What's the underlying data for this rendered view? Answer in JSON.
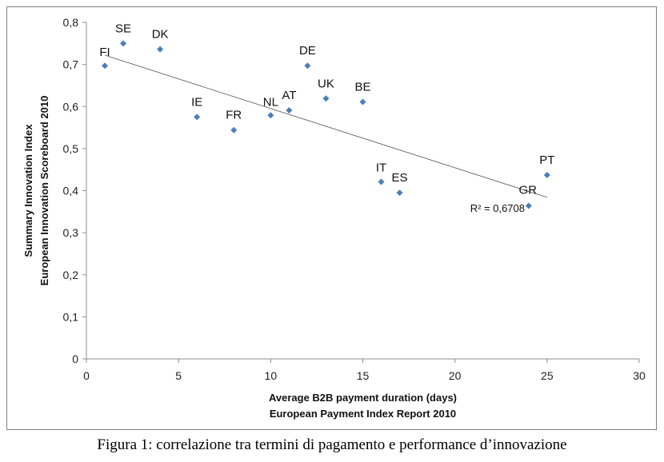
{
  "caption": "Figura 1: correlazione tra termini di pagamento e performance d’innovazione",
  "chart_data": {
    "type": "scatter",
    "xlabel_lines": [
      "Average B2B payment duration (days)",
      "European Payment Index Report 2010"
    ],
    "ylabel_lines": [
      "Summary Innovation Index",
      "European Innovation Scoreboard 2010"
    ],
    "xlim": [
      0,
      30
    ],
    "ylim": [
      0,
      0.8
    ],
    "x_ticks": [
      0,
      5,
      10,
      15,
      20,
      25,
      30
    ],
    "x_tick_labels": [
      "0",
      "5",
      "10",
      "15",
      "20",
      "25",
      "30"
    ],
    "y_ticks": [
      0,
      0.1,
      0.2,
      0.3,
      0.4,
      0.5,
      0.6,
      0.7,
      0.8
    ],
    "y_tick_labels": [
      "0",
      "0,1",
      "0,2",
      "0,3",
      "0,4",
      "0,5",
      "0,6",
      "0,7",
      "0,8"
    ],
    "grid": "none",
    "marker_color": "#4a7ebb",
    "trendline_color": "#555555",
    "points": [
      {
        "label": "FI",
        "x": 1,
        "y": 0.697
      },
      {
        "label": "SE",
        "x": 2,
        "y": 0.75
      },
      {
        "label": "DK",
        "x": 4,
        "y": 0.736
      },
      {
        "label": "IE",
        "x": 6,
        "y": 0.575
      },
      {
        "label": "FR",
        "x": 8,
        "y": 0.544
      },
      {
        "label": "NL",
        "x": 10,
        "y": 0.579
      },
      {
        "label": "AT",
        "x": 11,
        "y": 0.591
      },
      {
        "label": "DE",
        "x": 12,
        "y": 0.697
      },
      {
        "label": "UK",
        "x": 13,
        "y": 0.619
      },
      {
        "label": "BE",
        "x": 15,
        "y": 0.611
      },
      {
        "label": "IT",
        "x": 16,
        "y": 0.421
      },
      {
        "label": "ES",
        "x": 17,
        "y": 0.395
      },
      {
        "label": "GR",
        "x": 24,
        "y": 0.364
      },
      {
        "label": "PT",
        "x": 25,
        "y": 0.437
      }
    ],
    "trendline": {
      "x": [
        1,
        25
      ],
      "y": [
        0.722,
        0.384
      ]
    },
    "r_squared_label": "R² = 0,6708"
  }
}
